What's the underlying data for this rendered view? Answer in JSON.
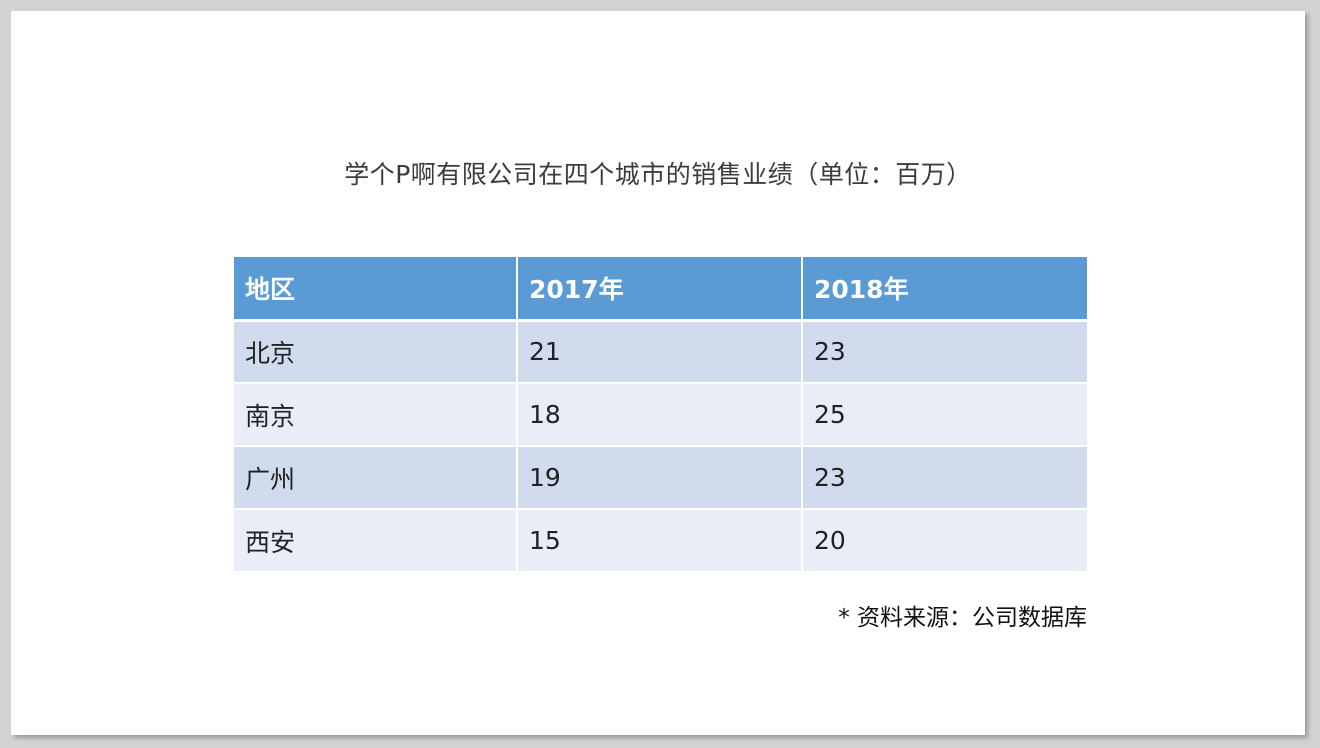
{
  "title": "学个P啊有限公司在四个城市的销售业绩（单位：百万）",
  "table": {
    "headers": [
      "地区",
      "2017年",
      "2018年"
    ],
    "rows": [
      [
        "北京",
        "21",
        "23"
      ],
      [
        "南京",
        "18",
        "25"
      ],
      [
        "广州",
        "19",
        "23"
      ],
      [
        "西安",
        "15",
        "20"
      ]
    ]
  },
  "source": "* 资料来源：公司数据库",
  "colors": {
    "header_bg": "#5b9bd5",
    "row_odd_bg": "#d0dcee",
    "row_even_bg": "#e9edf7"
  }
}
